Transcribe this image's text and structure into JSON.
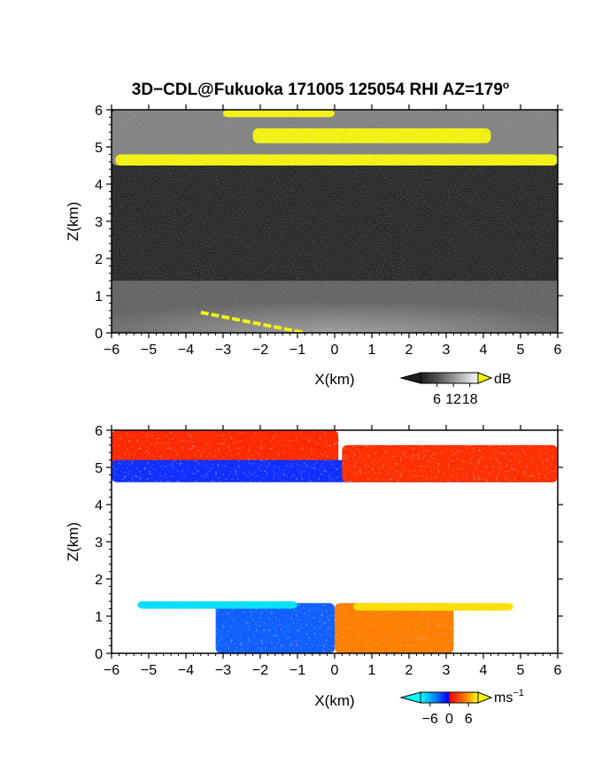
{
  "title": "3D−CDL@Fukuoka 171005 125054 RHI AZ=179",
  "title_superscript": "o",
  "chart_data": [
    {
      "type": "heatmap",
      "quantity": "reflectivity",
      "xlabel": "X(km)",
      "ylabel": "Z(km)",
      "xlim": [
        -6,
        6
      ],
      "ylim": [
        0,
        6
      ],
      "xticks": [
        "−6",
        "−5",
        "−4",
        "−3",
        "−2",
        "−1",
        "0",
        "1",
        "2",
        "3",
        "4",
        "5",
        "6"
      ],
      "yticks": [
        "0",
        "1",
        "2",
        "3",
        "4",
        "5",
        "6"
      ],
      "background_color": "#1e1e1e",
      "regions": [
        {
          "feature": "upper cloud layer",
          "x_range": [
            -6,
            6
          ],
          "z_range": [
            4.5,
            6.0
          ],
          "color": "#9a9a9a"
        },
        {
          "feature": "strong echo band",
          "x_range": [
            -2.2,
            4.2
          ],
          "z_range": [
            5.1,
            5.5
          ],
          "color": "#ffff00"
        },
        {
          "feature": "strong echo at cloud base",
          "x_range": [
            -5.9,
            6.0
          ],
          "z_range": [
            4.5,
            4.8
          ],
          "color": "#ffff00"
        },
        {
          "feature": "strong echo at cloud top",
          "x_range": [
            -3.0,
            0.0
          ],
          "z_range": [
            5.8,
            6.0
          ],
          "color": "#ffff00"
        },
        {
          "feature": "boundary layer",
          "x_range": [
            -6,
            6
          ],
          "z_range": [
            0.0,
            1.4
          ],
          "color": "#8a8a8a"
        },
        {
          "feature": "ground clutter line",
          "x_range": [
            -3.6,
            -0.8
          ],
          "z_range": [
            0.0,
            0.55
          ],
          "color": "#ffff00"
        }
      ],
      "colorbar": {
        "unit": "dB",
        "ticks": [
          "6",
          "12",
          "18"
        ],
        "range": [
          0,
          21
        ],
        "colors": [
          "#202020",
          "#505050",
          "#808080",
          "#b0b0b0",
          "#dcdcdc",
          "#ffff00"
        ]
      }
    },
    {
      "type": "heatmap",
      "quantity": "Doppler velocity",
      "xlabel": "X(km)",
      "ylabel": "Z(km)",
      "xlim": [
        -6,
        6
      ],
      "ylim": [
        0,
        6
      ],
      "xticks": [
        "−6",
        "−5",
        "−4",
        "−3",
        "−2",
        "−1",
        "0",
        "1",
        "2",
        "3",
        "4",
        "5",
        "6"
      ],
      "yticks": [
        "0",
        "1",
        "2",
        "3",
        "4",
        "5",
        "6"
      ],
      "background_color": "#ffffff",
      "regions": [
        {
          "feature": "receding upper layer",
          "x_range": [
            -6,
            0.1
          ],
          "z_range": [
            5.0,
            6.0
          ],
          "color": "#ff2a00"
        },
        {
          "feature": "approaching band",
          "x_range": [
            -6,
            6
          ],
          "z_range": [
            4.6,
            5.2
          ],
          "color": "#1030ff"
        },
        {
          "feature": "receding layer east",
          "x_range": [
            0.2,
            6
          ],
          "z_range": [
            4.6,
            5.6
          ],
          "color": "#ff3000"
        },
        {
          "feature": "approaching boundary layer",
          "x_range": [
            -3.2,
            0.0
          ],
          "z_range": [
            0.0,
            1.35
          ],
          "color": "#1060ff"
        },
        {
          "feature": "receding boundary layer",
          "x_range": [
            0.0,
            3.2
          ],
          "z_range": [
            0.0,
            1.35
          ],
          "color": "#ff8000"
        },
        {
          "feature": "strong approaching top",
          "x_range": [
            -5.3,
            -1.0
          ],
          "z_range": [
            1.2,
            1.4
          ],
          "color": "#00e0ff"
        },
        {
          "feature": "strong receding top",
          "x_range": [
            0.5,
            4.8
          ],
          "z_range": [
            1.15,
            1.35
          ],
          "color": "#ffe000"
        }
      ],
      "colorbar": {
        "unit": "ms",
        "unit_exponent": "−1",
        "ticks": [
          "−6",
          "0",
          "6"
        ],
        "range": [
          -9,
          9
        ],
        "colors": [
          "#00ffff",
          "#0080ff",
          "#0000ff",
          "#ff0000",
          "#ff8000",
          "#ffff00"
        ]
      }
    }
  ]
}
